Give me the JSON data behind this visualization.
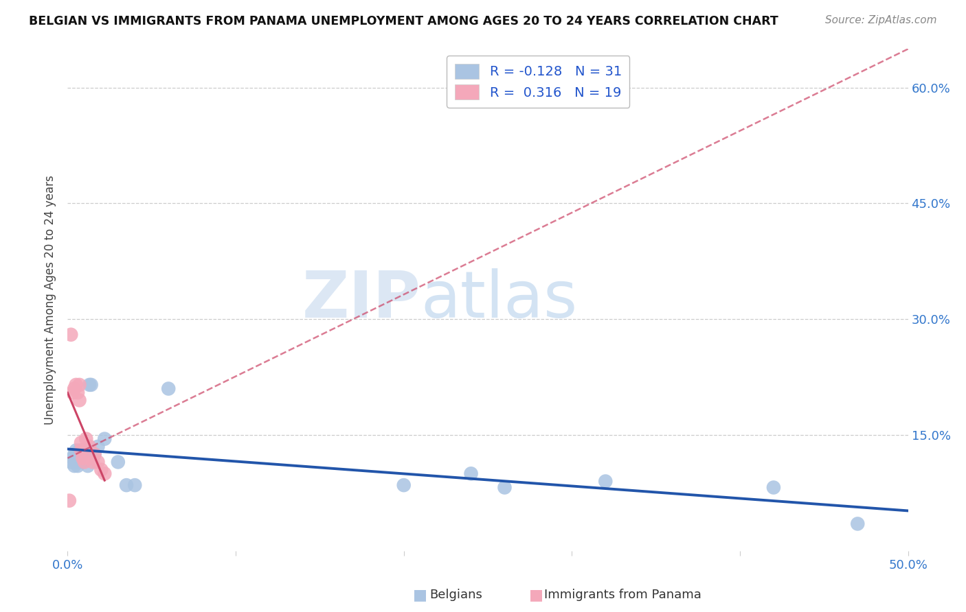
{
  "title": "BELGIAN VS IMMIGRANTS FROM PANAMA UNEMPLOYMENT AMONG AGES 20 TO 24 YEARS CORRELATION CHART",
  "source": "Source: ZipAtlas.com",
  "ylabel": "Unemployment Among Ages 20 to 24 years",
  "xlim": [
    0.0,
    0.5
  ],
  "ylim": [
    0.0,
    0.65
  ],
  "ytick_vals": [
    0.15,
    0.3,
    0.45,
    0.6
  ],
  "ytick_labels": [
    "15.0%",
    "30.0%",
    "45.0%",
    "60.0%"
  ],
  "belgian_R": -0.128,
  "belgian_N": 31,
  "panama_R": 0.316,
  "panama_N": 19,
  "belgian_color": "#aac4e2",
  "panama_color": "#f4a8ba",
  "belgian_line_color": "#2255aa",
  "panama_line_color": "#cc4466",
  "legend_label_belgian": "Belgians",
  "legend_label_panama": "Immigrants from Panama",
  "watermark_zip": "ZIP",
  "watermark_atlas": "atlas",
  "background_color": "#ffffff",
  "grid_color": "#cccccc",
  "belgian_x": [
    0.002,
    0.003,
    0.004,
    0.004,
    0.005,
    0.005,
    0.006,
    0.006,
    0.007,
    0.007,
    0.008,
    0.009,
    0.01,
    0.01,
    0.011,
    0.012,
    0.013,
    0.014,
    0.016,
    0.018,
    0.022,
    0.03,
    0.035,
    0.04,
    0.06,
    0.2,
    0.24,
    0.26,
    0.32,
    0.42,
    0.47
  ],
  "belgian_y": [
    0.115,
    0.12,
    0.11,
    0.125,
    0.115,
    0.13,
    0.11,
    0.12,
    0.13,
    0.125,
    0.12,
    0.115,
    0.13,
    0.12,
    0.125,
    0.11,
    0.215,
    0.215,
    0.125,
    0.135,
    0.145,
    0.115,
    0.085,
    0.085,
    0.21,
    0.085,
    0.1,
    0.082,
    0.09,
    0.082,
    0.035
  ],
  "panama_x": [
    0.001,
    0.002,
    0.003,
    0.004,
    0.005,
    0.006,
    0.007,
    0.007,
    0.008,
    0.008,
    0.009,
    0.01,
    0.011,
    0.013,
    0.015,
    0.016,
    0.018,
    0.02,
    0.022
  ],
  "panama_y": [
    0.065,
    0.28,
    0.205,
    0.21,
    0.215,
    0.205,
    0.215,
    0.195,
    0.13,
    0.14,
    0.12,
    0.115,
    0.145,
    0.135,
    0.115,
    0.125,
    0.115,
    0.105,
    0.1
  ]
}
